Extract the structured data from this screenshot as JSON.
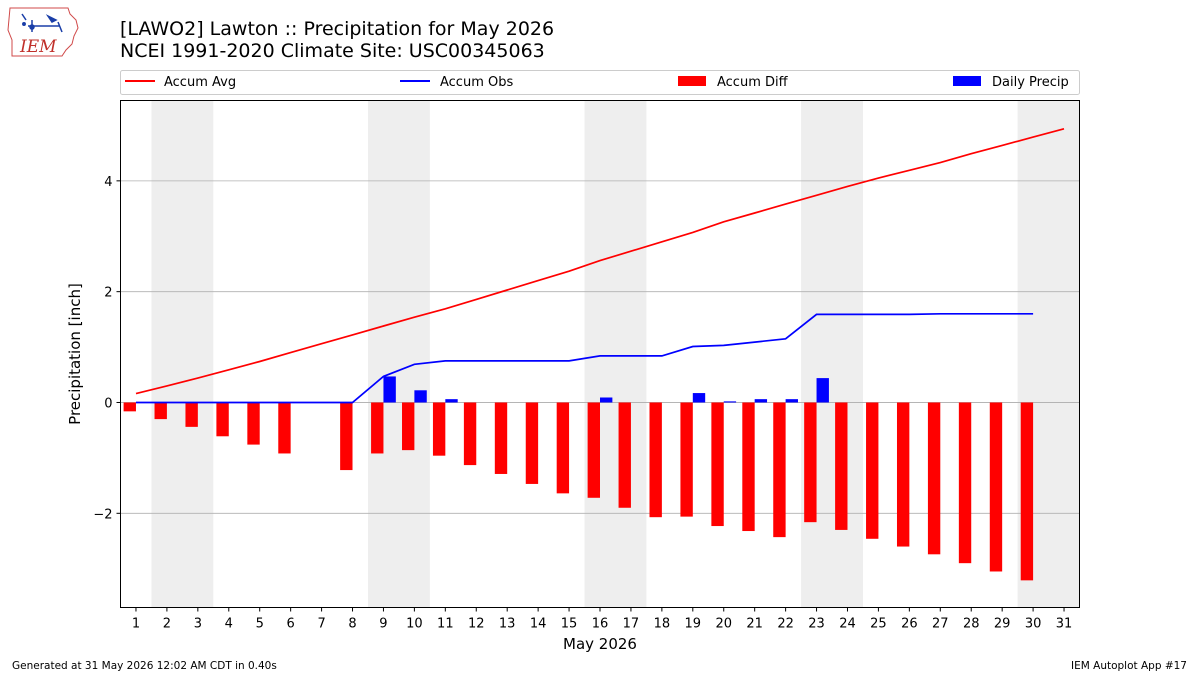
{
  "title_line1": "[LAWO2] Lawton :: Precipitation for May 2026",
  "title_line2": "NCEI 1991-2020 Climate Site: USC00345063",
  "logo_text": "IEM",
  "footer_left": "Generated at 31 May 2026 12:02 AM CDT in 0.40s",
  "footer_right": "IEM Autoplot App #17",
  "colors": {
    "accum_avg": "#ff0000",
    "accum_obs": "#0000ff",
    "accum_diff": "#ff0000",
    "daily_precip": "#0000ff",
    "weekend_shade": "#eeeeee",
    "grid": "#b0b0b0"
  },
  "chart_data": {
    "type": "bar",
    "xlabel": "May 2026",
    "ylabel": "Precipitation [inch]",
    "xlim": [
      0.5,
      31.5
    ],
    "ylim": [
      -3.7,
      5.45
    ],
    "x_ticks": [
      1,
      2,
      3,
      4,
      5,
      6,
      7,
      8,
      9,
      10,
      11,
      12,
      13,
      14,
      15,
      16,
      17,
      18,
      19,
      20,
      21,
      22,
      23,
      24,
      25,
      26,
      27,
      28,
      29,
      30,
      31
    ],
    "y_ticks": [
      -2,
      0,
      2,
      4
    ],
    "y_tick_labels": [
      "−2",
      "0",
      "2",
      "4"
    ],
    "grid": "horizontal",
    "legend_placement": "top, above plot",
    "weekend_shading_days": [
      [
        2,
        3
      ],
      [
        9,
        10
      ],
      [
        16,
        17
      ],
      [
        23,
        24
      ],
      [
        30,
        31
      ]
    ],
    "series": [
      {
        "name": "Accum Avg",
        "type": "line",
        "x": [
          1,
          2,
          3,
          4,
          5,
          6,
          7,
          8,
          9,
          10,
          11,
          12,
          13,
          14,
          15,
          16,
          17,
          18,
          19,
          20,
          21,
          22,
          23,
          24,
          25,
          26,
          27,
          28,
          29,
          30,
          31
        ],
        "values": [
          0.16,
          0.3,
          0.44,
          0.59,
          0.74,
          0.9,
          1.06,
          1.22,
          1.38,
          1.54,
          1.69,
          1.86,
          2.03,
          2.2,
          2.37,
          2.56,
          2.73,
          2.9,
          3.07,
          3.26,
          3.42,
          3.58,
          3.74,
          3.9,
          4.05,
          4.19,
          4.33,
          4.49,
          4.64,
          4.79,
          4.94
        ]
      },
      {
        "name": "Accum Obs",
        "type": "line",
        "x": [
          1,
          2,
          3,
          4,
          5,
          6,
          8,
          9,
          10,
          11,
          12,
          13,
          14,
          15,
          16,
          17,
          18,
          19,
          20,
          21,
          22,
          23,
          24,
          25,
          26,
          27,
          28,
          29,
          30
        ],
        "values": [
          0,
          0,
          0,
          0,
          0,
          0,
          0,
          0.47,
          0.69,
          0.75,
          0.75,
          0.75,
          0.75,
          0.75,
          0.84,
          0.84,
          0.84,
          1.01,
          1.03,
          1.09,
          1.15,
          1.59,
          1.59,
          1.59,
          1.59,
          1.6,
          1.6,
          1.6,
          1.6
        ]
      },
      {
        "name": "Accum Diff",
        "type": "bar",
        "x": [
          1,
          2,
          3,
          4,
          5,
          6,
          8,
          9,
          10,
          11,
          12,
          13,
          14,
          15,
          16,
          17,
          18,
          19,
          20,
          21,
          22,
          23,
          24,
          25,
          26,
          27,
          28,
          29,
          30
        ],
        "values": [
          -0.16,
          -0.3,
          -0.44,
          -0.61,
          -0.76,
          -0.92,
          -1.22,
          -0.92,
          -0.86,
          -0.96,
          -1.13,
          -1.29,
          -1.47,
          -1.64,
          -1.72,
          -1.9,
          -2.07,
          -2.06,
          -2.23,
          -2.32,
          -2.43,
          -2.16,
          -2.3,
          -2.46,
          -2.6,
          -2.74,
          -2.9,
          -3.05,
          -3.21
        ]
      },
      {
        "name": "Daily Precip",
        "type": "bar",
        "x": [
          9,
          10,
          11,
          16,
          19,
          20,
          21,
          22,
          23
        ],
        "values": [
          0.47,
          0.22,
          0.06,
          0.09,
          0.17,
          0.02,
          0.06,
          0.06,
          0.44
        ]
      }
    ]
  }
}
